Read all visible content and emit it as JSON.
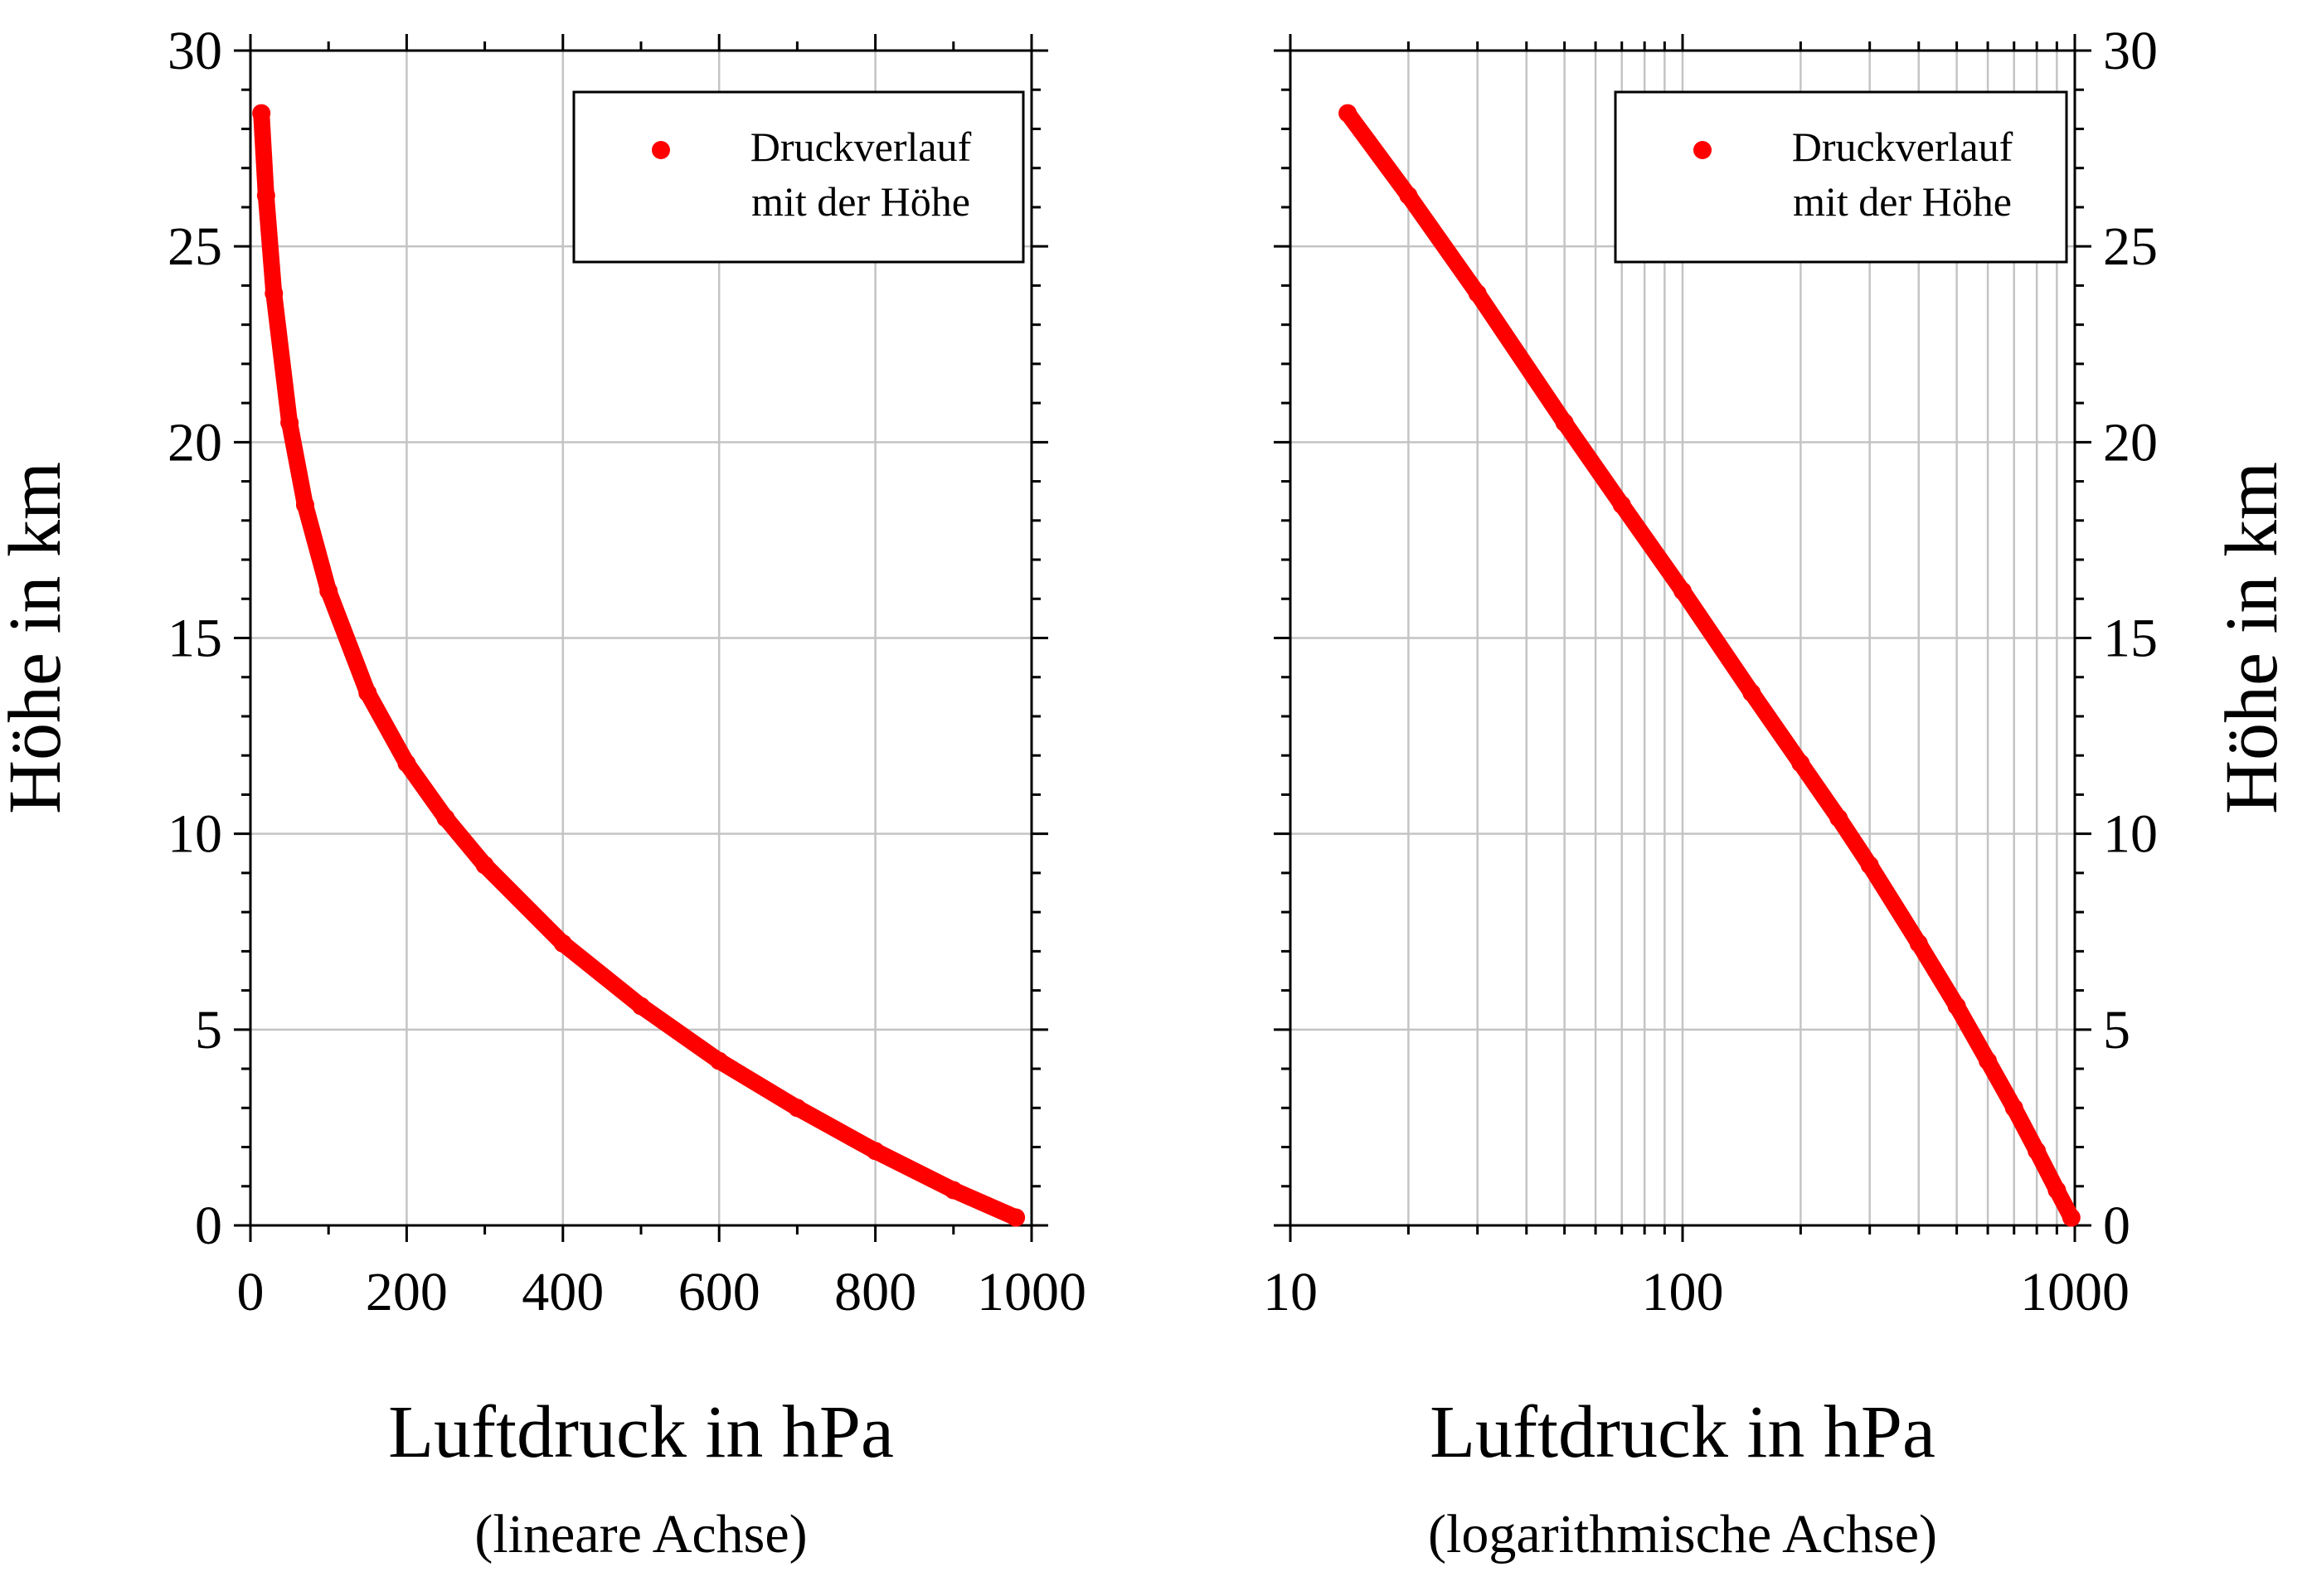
{
  "chart_data": [
    {
      "type": "scatter",
      "xscale": "linear",
      "xlim": [
        0,
        1000
      ],
      "ylim": [
        0,
        30
      ],
      "xticks": [
        0,
        200,
        400,
        600,
        800,
        1000
      ],
      "yticks": [
        0,
        5,
        10,
        15,
        20,
        25,
        30
      ],
      "xtick_labels": [
        "0",
        "200",
        "400",
        "600",
        "800",
        "1000"
      ],
      "ytick_labels": [
        "0",
        "5",
        "10",
        "15",
        "20",
        "25",
        "30"
      ],
      "xlabel": "Luftdruck in hPa",
      "xsublabel": "(lineare Achse)",
      "ylabel": "Höhe in km",
      "ylabel_side": "left",
      "grid": true,
      "legend": {
        "placement": "top-right",
        "lines": [
          "Druckverlauf",
          "mit der Höhe"
        ]
      },
      "series": [
        {
          "name": "Druckverlauf mit der Höhe",
          "color": "#ff0000",
          "x": [
            980,
            900,
            800,
            700,
            600,
            500,
            400,
            300,
            250,
            200,
            150,
            100,
            70,
            50,
            30,
            20,
            14
          ],
          "y": [
            0.2,
            0.9,
            1.9,
            3.0,
            4.2,
            5.6,
            7.2,
            9.2,
            10.4,
            11.8,
            13.6,
            16.2,
            18.4,
            20.5,
            23.8,
            26.3,
            28.4
          ]
        }
      ]
    },
    {
      "type": "scatter",
      "xscale": "log",
      "xlim": [
        10,
        1000
      ],
      "ylim": [
        0,
        30
      ],
      "xticks": [
        10,
        100,
        1000
      ],
      "yticks": [
        0,
        5,
        10,
        15,
        20,
        25,
        30
      ],
      "xtick_labels": [
        "10",
        "100",
        "1000"
      ],
      "ytick_labels": [
        "0",
        "5",
        "10",
        "15",
        "20",
        "25",
        "30"
      ],
      "xlabel": "Luftdruck in hPa",
      "xsublabel": "(logarithmische Achse)",
      "ylabel": "Höhe in km",
      "ylabel_side": "right",
      "grid": true,
      "legend": {
        "placement": "top-right",
        "lines": [
          "Druckverlauf",
          "mit der Höhe"
        ]
      },
      "series": [
        {
          "name": "Druckverlauf mit der Höhe",
          "color": "#ff0000",
          "x": [
            980,
            900,
            800,
            700,
            600,
            500,
            400,
            300,
            250,
            200,
            150,
            100,
            70,
            50,
            30,
            20,
            14
          ],
          "y": [
            0.2,
            0.9,
            1.9,
            3.0,
            4.2,
            5.6,
            7.2,
            9.2,
            10.4,
            11.8,
            13.6,
            16.2,
            18.4,
            20.5,
            23.8,
            26.3,
            28.4
          ]
        }
      ]
    }
  ]
}
